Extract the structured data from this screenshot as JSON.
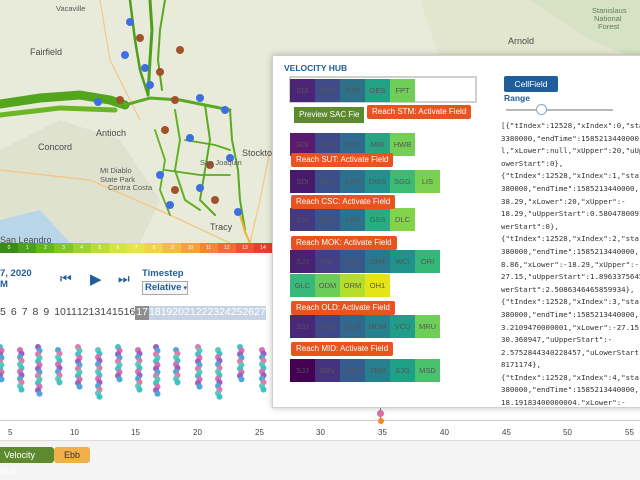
{
  "map": {
    "labels": [
      {
        "text": "Vacaville",
        "cls": "sm"
      },
      {
        "text": "Fairfield",
        "cls": ""
      },
      {
        "text": "Antioch",
        "cls": ""
      },
      {
        "text": "Concord",
        "cls": ""
      },
      {
        "text": "Mt Diablo",
        "cls": "sm"
      },
      {
        "text": "State Park",
        "cls": "sm"
      },
      {
        "text": "Contra Costa",
        "cls": "sm"
      },
      {
        "text": "San Leandro",
        "cls": ""
      },
      {
        "text": "Tracy",
        "cls": ""
      },
      {
        "text": "Stockto",
        "cls": ""
      },
      {
        "text": "San Joaquin",
        "cls": "sm"
      },
      {
        "text": "Arnold",
        "cls": ""
      },
      {
        "text": "Stanislaus",
        "cls": "grn"
      },
      {
        "text": "National",
        "cls": "grn"
      },
      {
        "text": "Forest",
        "cls": "grn"
      }
    ]
  },
  "colorbar": {
    "labels": [
      "0",
      "1",
      "2",
      "3",
      "4",
      "5",
      "6",
      "7",
      "8",
      "9",
      "10",
      "11",
      "12",
      "13",
      "14"
    ],
    "colors": [
      "#3a8c16",
      "#4aa11c",
      "#63b623",
      "#80c52a",
      "#9dd232",
      "#b9dc3a",
      "#d2e442",
      "#e7e34a",
      "#f2d24a",
      "#f6ba45",
      "#f7a03f",
      "#f6853a",
      "#f26a35",
      "#ee5230",
      "#e8402b"
    ]
  },
  "controls": {
    "date_line1": "7, 2020",
    "date_line2": "M",
    "prev_icon": "⏮",
    "play_icon": "▶",
    "next_icon": "⏭",
    "timestep_label": "Timestep",
    "timestep_value": "Relative"
  },
  "timesteps": {
    "items": [
      "5",
      "6",
      "7",
      "8",
      "9",
      "10",
      "11",
      "12",
      "13",
      "14",
      "15",
      "16",
      "17",
      "18",
      "19",
      "20",
      "21",
      "22",
      "23",
      "24",
      "25",
      "26",
      "27"
    ],
    "selected": "17"
  },
  "axis": {
    "ticks": [
      "5",
      "10",
      "15",
      "20",
      "25",
      "30",
      "35",
      "40",
      "45",
      "50",
      "55"
    ]
  },
  "bottom": {
    "velocity_hub": "Velocity Hub",
    "ebb": "Ebb"
  },
  "panel": {
    "title": "VELOCITY HUB",
    "preview_label": "Preview SAC Fie",
    "cellfield_label": "CellField",
    "range_label": "Range",
    "reaches": [
      {
        "cells": [
          {
            "t": "SDI",
            "c": "#4c2475"
          },
          {
            "t": "SRV",
            "c": "#3e4d8a"
          },
          {
            "t": "SJR",
            "c": "#2d7087"
          },
          {
            "t": "GES",
            "c": "#21a285"
          },
          {
            "t": "FPT",
            "c": "#6ece58"
          }
        ]
      },
      {
        "cells": [
          {
            "t": "SDI",
            "c": "#5a1a70"
          },
          {
            "t": "SRV",
            "c": "#3e4a8a"
          },
          {
            "t": "KRT",
            "c": "#2e6b8e"
          },
          {
            "t": "MIR",
            "c": "#29a383"
          },
          {
            "t": "HWB",
            "c": "#73cf56"
          }
        ]
      },
      {
        "cells": [
          {
            "t": "SDI",
            "c": "#481a6c"
          },
          {
            "t": "SRV",
            "c": "#3d4f8a"
          },
          {
            "t": "KRT",
            "c": "#2d708e"
          },
          {
            "t": "DWS",
            "c": "#21918c"
          },
          {
            "t": "SGG",
            "c": "#3cbb75"
          },
          {
            "t": "LIS",
            "c": "#7ad151"
          }
        ]
      },
      {
        "cells": [
          {
            "t": "SJJ",
            "c": "#44397f"
          },
          {
            "t": "SRV",
            "c": "#3b528b"
          },
          {
            "t": "LPN",
            "c": "#2c728e"
          },
          {
            "t": "GSS",
            "c": "#27ad81"
          },
          {
            "t": "DLC",
            "c": "#84d44b"
          }
        ]
      },
      {
        "cells": [
          {
            "t": "SJJ",
            "c": "#482173"
          },
          {
            "t": "FAL",
            "c": "#433e85"
          },
          {
            "t": "HOL",
            "c": "#38588c"
          },
          {
            "t": "OH4",
            "c": "#2a788e"
          },
          {
            "t": "WCI",
            "c": "#20928c"
          },
          {
            "t": "ORI",
            "c": "#35b779"
          }
        ]
      },
      {
        "cells": [
          {
            "t": "GLC",
            "c": "#38b87a"
          },
          {
            "t": "ODM",
            "c": "#6dcd59"
          },
          {
            "t": "ORM",
            "c": "#b5de2b"
          },
          {
            "t": "OH1",
            "c": "#e5e419"
          }
        ]
      },
      {
        "cells": [
          {
            "t": "SJJ",
            "c": "#482878"
          },
          {
            "t": "ORQ",
            "c": "#3e4989"
          },
          {
            "t": "OLD",
            "c": "#31688e"
          },
          {
            "t": "MDM",
            "c": "#26828e"
          },
          {
            "t": "VCU",
            "c": "#1f9e89"
          },
          {
            "t": "MRU",
            "c": "#6ece58"
          }
        ]
      },
      {
        "cells": [
          {
            "t": "SJJ",
            "c": "#440154"
          },
          {
            "t": "SRV",
            "c": "#46337f"
          },
          {
            "t": "OSJ",
            "c": "#365c8d"
          },
          {
            "t": "TRN",
            "c": "#277f8e"
          },
          {
            "t": "SJG",
            "c": "#1fa187"
          },
          {
            "t": "MSD",
            "c": "#4ac16d"
          }
        ]
      }
    ],
    "actions": [
      "Reach STM: Activate Field",
      "Reach SUT: Activate Field",
      "Reach CSC: Activate Field",
      "Reach MOK: Activate Field",
      "Reach OLD: Activate Field",
      "Reach MID: Activate Field"
    ],
    "json_lines": [
      "[{\"tIndex\":12528,\"xIndex\":0,\"startTim",
      "3380000,\"endTime\":1585213440000,\"x",
      "l,\"xLower\":null,\"xUpper\":20,\"uUpper",
      "owerStart\":0},",
      "{\"tIndex\":12528,\"xIndex\":1,\"startTim",
      "380000,\"endTime\":1585213440000,\"x",
      "38.29,\"xLower\":20,\"xUpper\":-",
      "18.29,\"uUpperStart\":0.580478009108",
      "werStart\":0},",
      "{\"tIndex\":12528,\"xIndex\":2,\"startTim",
      "380000,\"endTime\":1585213440000,\"x",
      "8.86,\"xLower\":-18.29,\"xUpper\":-",
      "27.15,\"uUpperStart\":1.896337564599",
      "werStart\":2.5086346465859934},",
      "{\"tIndex\":12528,\"xIndex\":3,\"startTim",
      "380000,\"endTime\":1585213440000,\"x",
      "3.2109470000001,\"xLower\":-27.15,\"x",
      "30.360947,\"uUpperStart\":-",
      "2.5752844340228457,\"uLowerStart\":-",
      "8171174},",
      "{\"tIndex\":12528,\"xIndex\":4,\"startTim",
      "380000,\"endTime\":1585213440000,\"x",
      "18.19183400000004,\"xLower\":-",
      "30.360947,\"xUpper\":-48.552781,\"uUp",
      "1.650277802628885,\"uLowerStart\":-"
    ]
  }
}
